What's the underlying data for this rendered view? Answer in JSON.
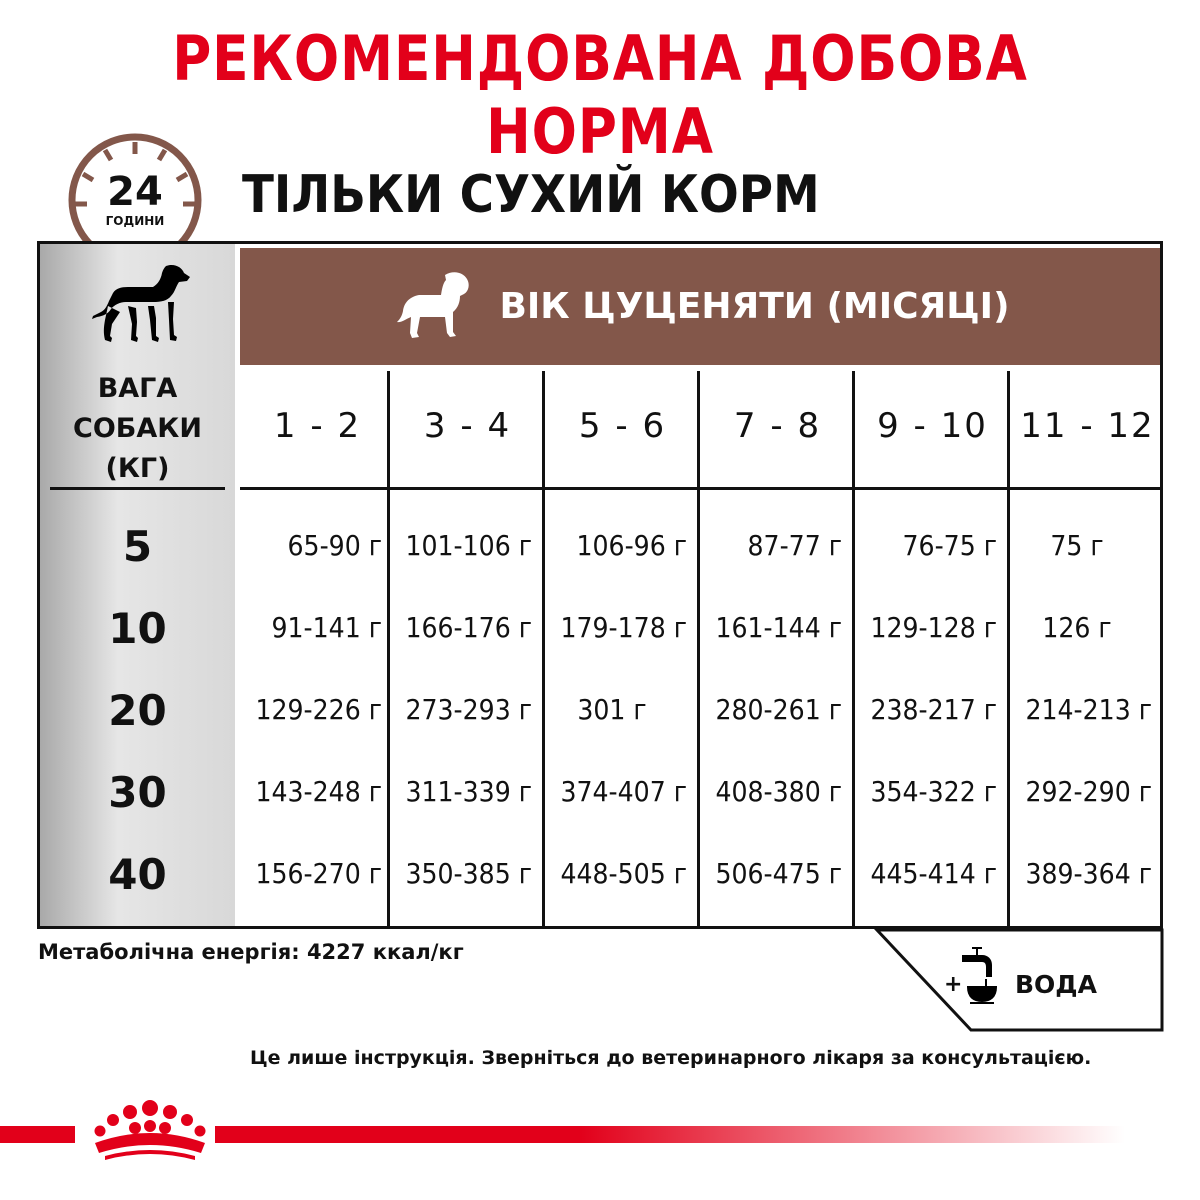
{
  "title": "РЕКОМЕНДОВАНА ДОБОВА НОРМА",
  "subtitle": "ТІЛЬКИ СУХИЙ КОРМ",
  "clock": {
    "number": "24",
    "unit": "ГОДИНИ"
  },
  "header": "ВІК ЦУЦЕНЯТИ (МІСЯЦІ)",
  "weight_label": [
    "ВАГА",
    "СОБАКИ",
    "(КГ)"
  ],
  "ages": [
    "1 - 2",
    "3 - 4",
    "5 - 6",
    "7 - 8",
    "9 - 10",
    "11 - 12"
  ],
  "rows": [
    {
      "weight": "5",
      "values": [
        "65-90 г",
        "101-106 г",
        "106-96 г",
        "87-77 г",
        "76-75 г",
        "75 г"
      ]
    },
    {
      "weight": "10",
      "values": [
        "91-141 г",
        "166-176 г",
        "179-178 г",
        "161-144 г",
        "129-128 г",
        "126 г"
      ]
    },
    {
      "weight": "20",
      "values": [
        "129-226 г",
        "273-293 г",
        "301 г",
        "280-261 г",
        "238-217 г",
        "214-213 г"
      ]
    },
    {
      "weight": "30",
      "values": [
        "143-248 г",
        "311-339 г",
        "374-407 г",
        "408-380 г",
        "354-322 г",
        "292-290 г"
      ]
    },
    {
      "weight": "40",
      "values": [
        "156-270 г",
        "350-385 г",
        "448-505 г",
        "506-475 г",
        "445-414 г",
        "389-364 г"
      ]
    }
  ],
  "energy": "Метаболічна енергія: 4227 ккал/кг",
  "water": "ВОДА",
  "water_plus": "+",
  "note": "Це лише інструкція. Зверніться до ветеринарного лікаря за консультацією.",
  "colors": {
    "brand_red": "#e2001a",
    "header_brown": "#83574a"
  }
}
